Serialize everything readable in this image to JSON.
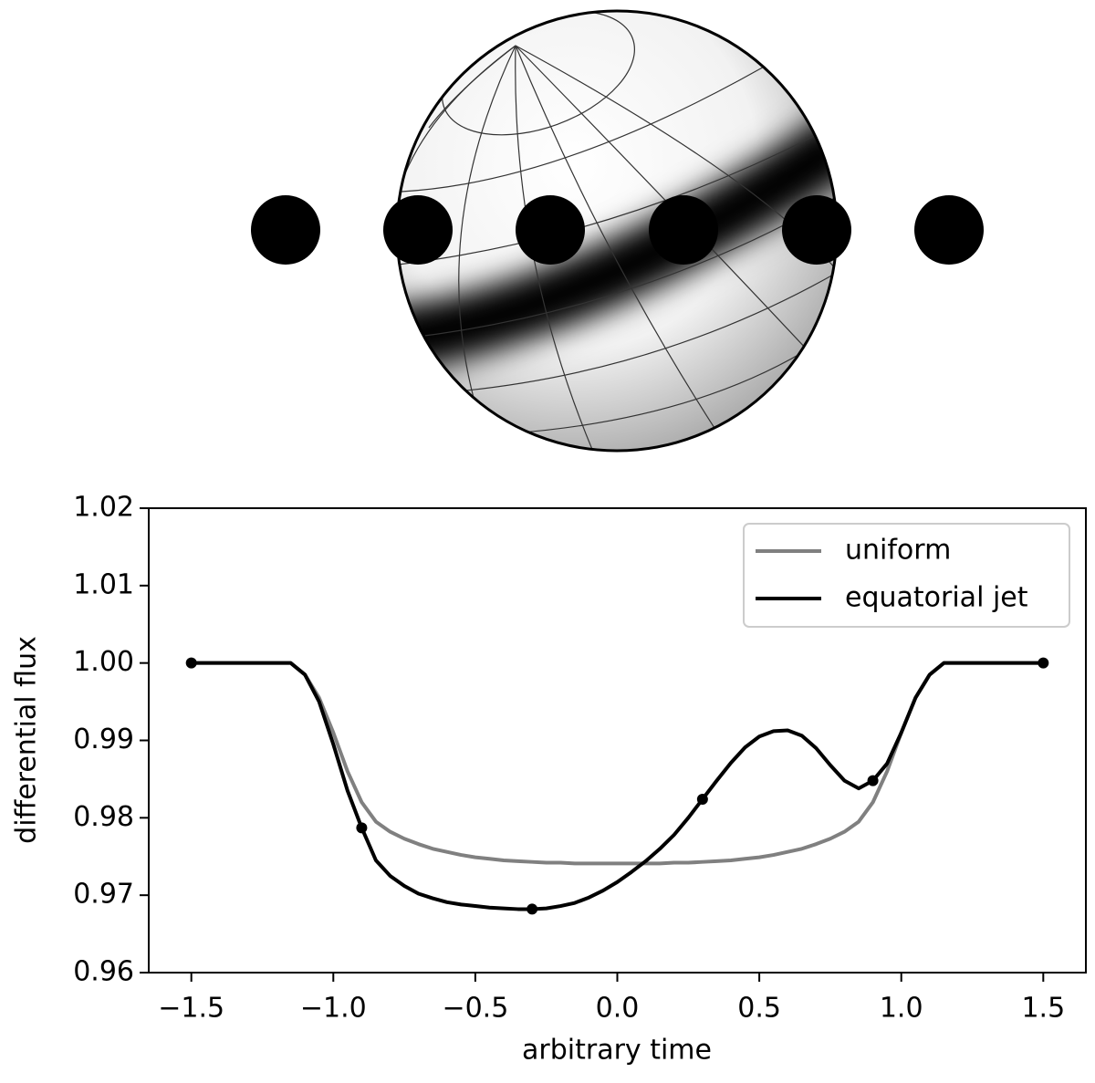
{
  "chart_data": {
    "type": "line",
    "xlabel": "arbitrary time",
    "ylabel": "differential flux",
    "x": [
      -1.5,
      -1.45,
      -1.4,
      -1.35,
      -1.3,
      -1.25,
      -1.2,
      -1.15,
      -1.1,
      -1.05,
      -1.0,
      -0.95,
      -0.9,
      -0.85,
      -0.8,
      -0.75,
      -0.7,
      -0.65,
      -0.6,
      -0.55,
      -0.5,
      -0.45,
      -0.4,
      -0.35,
      -0.3,
      -0.25,
      -0.2,
      -0.15,
      -0.1,
      -0.05,
      0,
      0.05,
      0.1,
      0.15,
      0.2,
      0.25,
      0.3,
      0.35,
      0.4,
      0.45,
      0.5,
      0.55,
      0.6,
      0.65,
      0.7,
      0.75,
      0.8,
      0.85,
      0.9,
      0.95,
      1.0,
      1.05,
      1.1,
      1.15,
      1.2,
      1.25,
      1.3,
      1.35,
      1.4,
      1.45,
      1.5
    ],
    "series": [
      {
        "name": "uniform",
        "color": "#808080",
        "values": [
          1.0,
          1.0,
          1.0,
          1.0,
          1.0,
          1.0,
          1.0,
          1.0,
          0.9985,
          0.9955,
          0.991,
          0.986,
          0.982,
          0.9795,
          0.9782,
          0.9773,
          0.9766,
          0.976,
          0.9756,
          0.9752,
          0.9749,
          0.9747,
          0.9745,
          0.9744,
          0.9743,
          0.9742,
          0.9742,
          0.9741,
          0.9741,
          0.9741,
          0.9741,
          0.9741,
          0.9741,
          0.9741,
          0.9742,
          0.9742,
          0.9743,
          0.9744,
          0.9745,
          0.9747,
          0.9749,
          0.9752,
          0.9756,
          0.976,
          0.9766,
          0.9773,
          0.9782,
          0.9795,
          0.982,
          0.986,
          0.991,
          0.9955,
          0.9985,
          1.0,
          1.0,
          1.0,
          1.0,
          1.0,
          1.0,
          1.0,
          1.0
        ]
      },
      {
        "name": "equatorial jet",
        "color": "#000000",
        "values": [
          1.0,
          1.0,
          1.0,
          1.0,
          1.0,
          1.0,
          1.0,
          1.0,
          0.9985,
          0.995,
          0.9895,
          0.9835,
          0.9787,
          0.9745,
          0.9725,
          0.9712,
          0.9702,
          0.9696,
          0.9691,
          0.9688,
          0.9686,
          0.9684,
          0.9683,
          0.9682,
          0.9682,
          0.9683,
          0.9686,
          0.969,
          0.9697,
          0.9706,
          0.9717,
          0.973,
          0.9744,
          0.976,
          0.9778,
          0.98,
          0.9824,
          0.9848,
          0.9871,
          0.9891,
          0.9905,
          0.9912,
          0.9913,
          0.9906,
          0.989,
          0.9868,
          0.9848,
          0.9838,
          0.9848,
          0.987,
          0.991,
          0.9955,
          0.9985,
          1.0,
          1.0,
          1.0,
          1.0,
          1.0,
          1.0,
          1.0,
          1.0
        ]
      }
    ],
    "markers": {
      "color": "#000000",
      "x": [
        -1.5,
        -0.9,
        -0.3,
        0.3,
        0.9,
        1.5
      ],
      "values": [
        1.0,
        0.9787,
        0.9682,
        0.9824,
        0.9848,
        1.0
      ]
    },
    "xlim": [
      -1.65,
      1.65
    ],
    "ylim": [
      0.96,
      1.02
    ],
    "xticks": [
      {
        "value": -1.5,
        "label": "−1.5"
      },
      {
        "value": -1.0,
        "label": "−1.0"
      },
      {
        "value": -0.5,
        "label": "−0.5"
      },
      {
        "value": 0,
        "label": "0.0"
      },
      {
        "value": 0.5,
        "label": "0.5"
      },
      {
        "value": 1.0,
        "label": "1.0"
      },
      {
        "value": 1.5,
        "label": "1.5"
      }
    ],
    "yticks": [
      0.96,
      0.97,
      0.98,
      0.99,
      {
        "value": 1.0,
        "label": "1.00"
      },
      1.01,
      1.02
    ],
    "legend": "upper right"
  }
}
